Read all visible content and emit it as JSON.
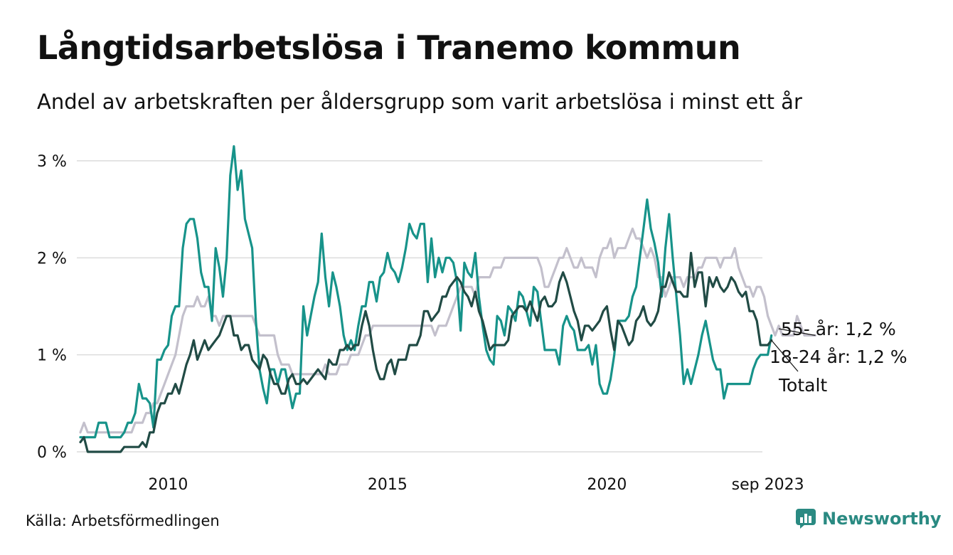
{
  "title": "Långtidsarbetslösa i Tranemo kommun",
  "subtitle": "Andel av arbetskraften per åldersgrupp som varit arbetslösa i minst ett år",
  "source": "Källa: Arbetsförmedlingen",
  "brand": "Newsworthy",
  "chart_data": {
    "type": "line",
    "title": "Långtidsarbetslösa i Tranemo kommun",
    "xlabel": "",
    "ylabel": "",
    "ylim": [
      0,
      3.1
    ],
    "x_start": 2008.0,
    "x_step": 0.08333,
    "x_ticks": [
      {
        "value": 2010,
        "label": "2010"
      },
      {
        "value": 2015,
        "label": "2015"
      },
      {
        "value": 2020,
        "label": "2020"
      },
      {
        "value": 2023.667,
        "label": "sep 2023"
      }
    ],
    "y_ticks": [
      {
        "value": 0,
        "label": "0 %"
      },
      {
        "value": 1,
        "label": "1 %"
      },
      {
        "value": 2,
        "label": "2 %"
      },
      {
        "value": 3,
        "label": "3 %"
      }
    ],
    "grid": true,
    "series": [
      {
        "name": "55- år",
        "end_label": "55- år: 1,2 %",
        "color": "#c3c0cc",
        "values": [
          0.2,
          0.3,
          0.2,
          0.2,
          0.2,
          0.2,
          0.2,
          0.2,
          0.2,
          0.2,
          0.2,
          0.2,
          0.2,
          0.2,
          0.2,
          0.3,
          0.3,
          0.3,
          0.4,
          0.4,
          0.5,
          0.5,
          0.6,
          0.7,
          0.8,
          0.9,
          1.0,
          1.2,
          1.4,
          1.5,
          1.5,
          1.5,
          1.6,
          1.5,
          1.5,
          1.6,
          1.4,
          1.4,
          1.3,
          1.4,
          1.4,
          1.4,
          1.4,
          1.4,
          1.4,
          1.4,
          1.4,
          1.4,
          1.3,
          1.2,
          1.2,
          1.2,
          1.2,
          1.2,
          1.0,
          0.9,
          0.9,
          0.9,
          0.8,
          0.8,
          0.8,
          0.8,
          0.8,
          0.8,
          0.8,
          0.8,
          0.8,
          0.9,
          0.8,
          0.8,
          0.8,
          0.9,
          0.9,
          0.9,
          1.0,
          1.0,
          1.0,
          1.1,
          1.2,
          1.2,
          1.3,
          1.3,
          1.3,
          1.3,
          1.3,
          1.3,
          1.3,
          1.3,
          1.3,
          1.3,
          1.3,
          1.3,
          1.3,
          1.3,
          1.3,
          1.3,
          1.3,
          1.2,
          1.3,
          1.3,
          1.3,
          1.4,
          1.5,
          1.6,
          1.7,
          1.7,
          1.7,
          1.7,
          1.6,
          1.8,
          1.8,
          1.8,
          1.8,
          1.9,
          1.9,
          1.9,
          2.0,
          2.0,
          2.0,
          2.0,
          2.0,
          2.0,
          2.0,
          2.0,
          2.0,
          2.0,
          1.9,
          1.7,
          1.7,
          1.8,
          1.9,
          2.0,
          2.0,
          2.1,
          2.0,
          1.9,
          1.9,
          2.0,
          1.9,
          1.9,
          1.9,
          1.8,
          2.0,
          2.1,
          2.1,
          2.2,
          2.0,
          2.1,
          2.1,
          2.1,
          2.2,
          2.3,
          2.2,
          2.2,
          2.1,
          2.0,
          2.1,
          2.0,
          1.8,
          1.8,
          1.6,
          1.7,
          1.8,
          1.8,
          1.8,
          1.7,
          1.8,
          1.8,
          1.8,
          1.9,
          1.9,
          2.0,
          2.0,
          2.0,
          2.0,
          1.9,
          2.0,
          2.0,
          2.0,
          2.1,
          1.9,
          1.8,
          1.7,
          1.7,
          1.6,
          1.7,
          1.7,
          1.6,
          1.4,
          1.3,
          1.2,
          1.3,
          1.2,
          1.2,
          1.2,
          1.2,
          1.4,
          1.3,
          1.2,
          1.2,
          1.2,
          1.2
        ]
      },
      {
        "name": "18-24 år",
        "end_label": "18-24 år: 1,2 %",
        "color": "#17938a",
        "values": [
          0.15,
          0.15,
          0.15,
          0.15,
          0.15,
          0.3,
          0.3,
          0.3,
          0.15,
          0.15,
          0.15,
          0.15,
          0.2,
          0.3,
          0.3,
          0.4,
          0.7,
          0.55,
          0.55,
          0.5,
          0.25,
          0.95,
          0.95,
          1.05,
          1.1,
          1.4,
          1.5,
          1.5,
          2.1,
          2.35,
          2.4,
          2.4,
          2.2,
          1.85,
          1.7,
          1.7,
          1.35,
          2.1,
          1.9,
          1.6,
          2.0,
          2.85,
          3.15,
          2.7,
          2.9,
          2.4,
          2.25,
          2.1,
          1.35,
          0.85,
          0.65,
          0.5,
          0.85,
          0.85,
          0.7,
          0.85,
          0.85,
          0.65,
          0.45,
          0.6,
          0.6,
          1.5,
          1.2,
          1.4,
          1.6,
          1.75,
          2.25,
          1.8,
          1.5,
          1.85,
          1.7,
          1.5,
          1.2,
          1.05,
          1.15,
          1.05,
          1.3,
          1.5,
          1.5,
          1.75,
          1.75,
          1.55,
          1.8,
          1.85,
          2.05,
          1.9,
          1.85,
          1.75,
          1.9,
          2.1,
          2.35,
          2.25,
          2.2,
          2.35,
          2.35,
          1.75,
          2.2,
          1.8,
          2.0,
          1.85,
          2.0,
          2.0,
          1.95,
          1.75,
          1.25,
          1.95,
          1.85,
          1.8,
          2.05,
          1.6,
          1.3,
          1.05,
          0.95,
          0.9,
          1.4,
          1.35,
          1.2,
          1.5,
          1.45,
          1.35,
          1.65,
          1.6,
          1.45,
          1.3,
          1.7,
          1.65,
          1.35,
          1.05,
          1.05,
          1.05,
          1.05,
          0.9,
          1.3,
          1.4,
          1.3,
          1.25,
          1.05,
          1.05,
          1.05,
          1.1,
          0.9,
          1.1,
          0.7,
          0.6,
          0.6,
          0.75,
          1.0,
          1.35,
          1.35,
          1.35,
          1.4,
          1.6,
          1.7,
          2.0,
          2.3,
          2.6,
          2.3,
          2.15,
          1.95,
          1.6,
          2.1,
          2.45,
          2.0,
          1.6,
          1.2,
          0.7,
          0.85,
          0.7,
          0.85,
          1.0,
          1.2,
          1.35,
          1.15,
          0.95,
          0.85,
          0.85,
          0.55,
          0.7,
          0.7,
          0.7,
          0.7,
          0.7,
          0.7,
          0.7,
          0.85,
          0.95,
          1.0,
          1.0,
          1.0,
          1.2
        ]
      },
      {
        "name": "Totalt",
        "end_label": "Totalt",
        "color": "#214b45",
        "values": [
          0.1,
          0.15,
          0.0,
          0.0,
          0.0,
          0.0,
          0.0,
          0.0,
          0.0,
          0.0,
          0.0,
          0.0,
          0.05,
          0.05,
          0.05,
          0.05,
          0.05,
          0.1,
          0.05,
          0.2,
          0.2,
          0.4,
          0.5,
          0.5,
          0.6,
          0.6,
          0.7,
          0.6,
          0.75,
          0.9,
          1.0,
          1.15,
          0.95,
          1.05,
          1.15,
          1.05,
          1.1,
          1.15,
          1.2,
          1.3,
          1.4,
          1.4,
          1.2,
          1.2,
          1.05,
          1.1,
          1.1,
          0.95,
          0.9,
          0.85,
          1.0,
          0.95,
          0.8,
          0.7,
          0.7,
          0.6,
          0.6,
          0.75,
          0.8,
          0.7,
          0.7,
          0.75,
          0.7,
          0.75,
          0.8,
          0.85,
          0.8,
          0.75,
          0.95,
          0.9,
          0.9,
          1.05,
          1.05,
          1.1,
          1.05,
          1.1,
          1.1,
          1.3,
          1.45,
          1.3,
          1.05,
          0.85,
          0.75,
          0.75,
          0.9,
          0.95,
          0.8,
          0.95,
          0.95,
          0.95,
          1.1,
          1.1,
          1.1,
          1.2,
          1.45,
          1.45,
          1.35,
          1.4,
          1.45,
          1.6,
          1.6,
          1.7,
          1.75,
          1.8,
          1.75,
          1.65,
          1.6,
          1.5,
          1.65,
          1.45,
          1.35,
          1.2,
          1.05,
          1.1,
          1.1,
          1.1,
          1.1,
          1.15,
          1.4,
          1.45,
          1.5,
          1.5,
          1.45,
          1.55,
          1.45,
          1.35,
          1.55,
          1.6,
          1.5,
          1.5,
          1.55,
          1.75,
          1.85,
          1.75,
          1.6,
          1.45,
          1.35,
          1.15,
          1.3,
          1.3,
          1.25,
          1.3,
          1.35,
          1.45,
          1.5,
          1.25,
          1.05,
          1.35,
          1.3,
          1.2,
          1.1,
          1.15,
          1.35,
          1.4,
          1.5,
          1.35,
          1.3,
          1.35,
          1.45,
          1.7,
          1.7,
          1.85,
          1.75,
          1.65,
          1.65,
          1.6,
          1.6,
          2.05,
          1.7,
          1.85,
          1.85,
          1.5,
          1.8,
          1.7,
          1.8,
          1.7,
          1.65,
          1.7,
          1.8,
          1.75,
          1.65,
          1.6,
          1.65,
          1.45,
          1.45,
          1.35,
          1.1,
          1.1,
          1.1,
          1.15
        ]
      }
    ]
  }
}
